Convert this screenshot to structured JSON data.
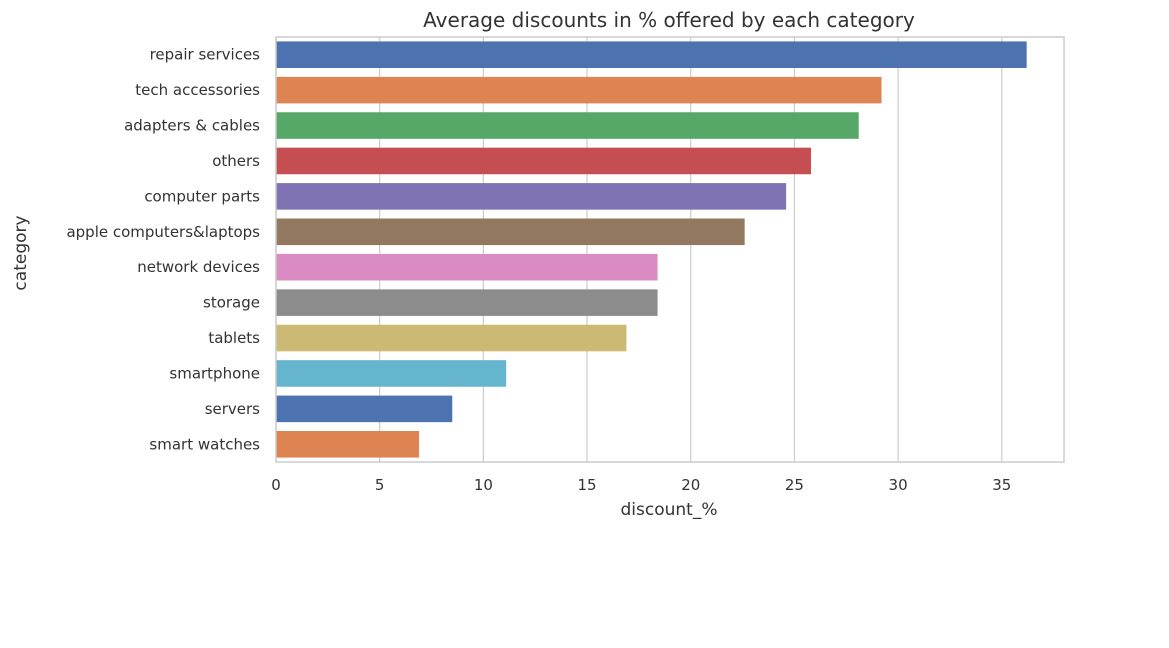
{
  "chart_data": {
    "type": "bar",
    "orientation": "horizontal",
    "title": "Average discounts in % offered by each category",
    "xlabel": "discount_%",
    "ylabel": "category",
    "xlim": [
      0,
      38
    ],
    "xticks": [
      0,
      5,
      10,
      15,
      20,
      25,
      30,
      35
    ],
    "grid": "vertical",
    "legend": "none",
    "categories": [
      "repair services",
      "tech accessories",
      "adapters & cables",
      "others",
      "computer parts",
      "apple computers&laptops",
      "network devices",
      "storage",
      "tablets",
      "smartphone",
      "servers",
      "smart watches"
    ],
    "values": [
      36.2,
      29.2,
      28.1,
      25.8,
      24.6,
      22.6,
      18.4,
      18.4,
      16.9,
      11.1,
      8.5,
      6.9
    ],
    "colors": [
      "#4c72b0",
      "#dd8452",
      "#55a868",
      "#c44e52",
      "#8172b3",
      "#937860",
      "#da8bc3",
      "#8c8c8c",
      "#ccb974",
      "#64b5cd",
      "#4c72b0",
      "#dd8452"
    ],
    "grid_color": "#cccccc",
    "axes_edge_color": "#cccccc"
  }
}
